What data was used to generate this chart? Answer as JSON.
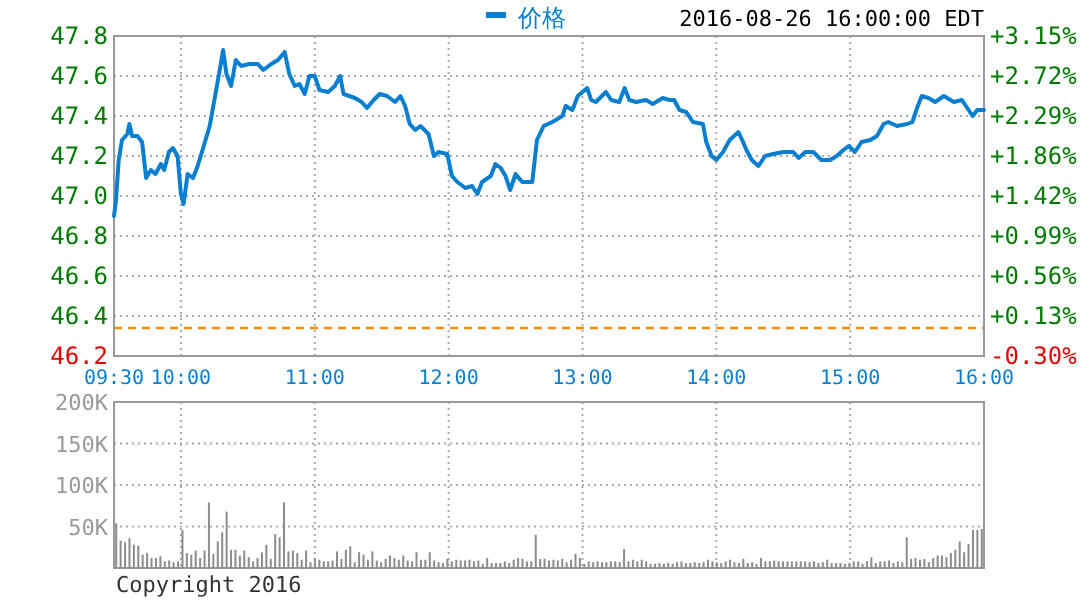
{
  "chart_data": [
    {
      "type": "line",
      "subtitle": "2016-08-26 16:00:00 EDT",
      "xlim": [
        9.5,
        16
      ],
      "xticks": [
        {
          "value": 9.5,
          "label": "09:30"
        },
        {
          "value": 10,
          "label": "10:00"
        },
        {
          "value": 11,
          "label": "11:00"
        },
        {
          "value": 12,
          "label": "12:00"
        },
        {
          "value": 13,
          "label": "13:00"
        },
        {
          "value": 14,
          "label": "14:00"
        },
        {
          "value": 15,
          "label": "15:00"
        },
        {
          "value": 16,
          "label": "16:00"
        }
      ],
      "ylim": [
        46.2,
        47.8
      ],
      "yticks": [
        46.2,
        46.4,
        46.6,
        46.8,
        {
          "value": 47,
          "label": "47.0"
        },
        47.2,
        47.4,
        47.6,
        47.8
      ],
      "y2lim": [
        -0.3,
        3.15
      ],
      "y2ticks": [
        {
          "value": -0.3,
          "label": "-0.30%"
        },
        {
          "value": 0.13,
          "label": "+0.13%"
        },
        {
          "value": 0.56,
          "label": "+0.56%"
        },
        {
          "value": 0.99,
          "label": "+0.99%"
        },
        {
          "value": 1.42,
          "label": "+1.42%"
        },
        {
          "value": 1.86,
          "label": "+1.86%"
        },
        {
          "value": 2.29,
          "label": "+2.29%"
        },
        {
          "value": 2.72,
          "label": "+2.72%"
        },
        {
          "value": 3.15,
          "label": "+3.15%"
        }
      ],
      "grid": true,
      "legend": "top",
      "ref_lines": [
        {
          "axis": "y",
          "value": 46.34,
          "color": "#ff8c00",
          "line_style": "dashed"
        }
      ],
      "series": [
        {
          "name": "价格",
          "color": "#0a7fcf",
          "x": [
            9.5,
            9.515,
            9.535,
            9.56,
            9.6,
            9.615,
            9.635,
            9.675,
            9.71,
            9.74,
            9.775,
            9.81,
            9.85,
            9.875,
            9.91,
            9.94,
            9.975,
            10.0,
            10.02,
            10.05,
            10.09,
            10.125,
            10.175,
            10.215,
            10.25,
            10.29,
            10.315,
            10.34,
            10.375,
            10.41,
            10.45,
            10.51,
            10.575,
            10.615,
            10.675,
            10.725,
            10.775,
            10.81,
            10.85,
            10.885,
            10.925,
            10.96,
            11.0,
            11.035,
            11.1,
            11.15,
            11.19,
            11.215,
            11.3,
            11.35,
            11.39,
            11.44,
            11.485,
            11.54,
            11.6,
            11.64,
            11.675,
            11.71,
            11.75,
            11.79,
            11.85,
            11.89,
            11.925,
            11.99,
            12.025,
            12.065,
            12.125,
            12.175,
            12.215,
            12.25,
            12.315,
            12.35,
            12.39,
            12.425,
            12.46,
            12.5,
            12.55,
            12.625,
            12.66,
            12.71,
            12.775,
            12.85,
            12.875,
            12.925,
            12.965,
            13.0,
            13.035,
            13.065,
            13.1,
            13.175,
            13.215,
            13.275,
            13.315,
            13.35,
            13.4,
            13.475,
            13.525,
            13.6,
            13.65,
            13.685,
            13.725,
            13.775,
            13.825,
            13.9,
            13.925,
            13.965,
            14.0,
            14.05,
            14.1,
            14.165,
            14.2,
            14.225,
            14.265,
            14.315,
            14.365,
            14.425,
            14.5,
            14.575,
            14.615,
            14.665,
            14.725,
            14.785,
            14.85,
            14.9,
            14.95,
            14.99,
            15.035,
            15.085,
            15.15,
            15.2,
            15.25,
            15.285,
            15.35,
            15.425,
            15.465,
            15.5,
            15.535,
            15.585,
            15.635,
            15.7,
            15.775,
            15.835,
            15.875,
            15.915,
            15.95,
            15.975,
            16.0
          ],
          "values": [
            46.9,
            46.98,
            47.18,
            47.28,
            47.31,
            47.36,
            47.3,
            47.3,
            47.27,
            47.09,
            47.13,
            47.11,
            47.16,
            47.13,
            47.22,
            47.24,
            47.2,
            47.01,
            46.96,
            47.11,
            47.09,
            47.15,
            47.26,
            47.35,
            47.48,
            47.63,
            47.73,
            47.61,
            47.55,
            47.68,
            47.65,
            47.66,
            47.66,
            47.63,
            47.66,
            47.68,
            47.72,
            47.61,
            47.55,
            47.56,
            47.51,
            47.6,
            47.6,
            47.53,
            47.52,
            47.55,
            47.6,
            47.51,
            47.49,
            47.47,
            47.44,
            47.48,
            47.51,
            47.5,
            47.47,
            47.5,
            47.45,
            47.36,
            47.33,
            47.35,
            47.31,
            47.2,
            47.22,
            47.21,
            47.1,
            47.07,
            47.04,
            47.05,
            47.01,
            47.07,
            47.1,
            47.16,
            47.14,
            47.1,
            47.03,
            47.11,
            47.07,
            47.07,
            47.28,
            47.35,
            47.37,
            47.4,
            47.45,
            47.43,
            47.5,
            47.52,
            47.54,
            47.48,
            47.47,
            47.52,
            47.48,
            47.47,
            47.54,
            47.48,
            47.47,
            47.48,
            47.46,
            47.49,
            47.48,
            47.48,
            47.43,
            47.42,
            47.37,
            47.36,
            47.27,
            47.2,
            47.18,
            47.22,
            47.28,
            47.32,
            47.27,
            47.23,
            47.18,
            47.15,
            47.2,
            47.21,
            47.22,
            47.22,
            47.19,
            47.22,
            47.22,
            47.18,
            47.18,
            47.2,
            47.23,
            47.25,
            47.22,
            47.27,
            47.28,
            47.3,
            47.36,
            47.37,
            47.35,
            47.36,
            47.37,
            47.44,
            47.5,
            47.49,
            47.47,
            47.5,
            47.47,
            47.48,
            47.44,
            47.4,
            47.43,
            47.43,
            47.43
          ]
        }
      ]
    },
    {
      "type": "bar",
      "color": "#8c8c8c",
      "grid": true,
      "tick_labels": "y",
      "ylim": [
        0,
        200000
      ],
      "yticks": [
        {
          "value": 0,
          "label": null
        },
        {
          "value": 50000,
          "label": "50K"
        },
        {
          "value": 100000,
          "label": "100K"
        },
        {
          "value": 150000,
          "label": "150K"
        },
        {
          "value": 200000,
          "label": "200K"
        }
      ],
      "annotations": [
        "Copyright 2016"
      ],
      "categories": [
        null,
        null,
        null,
        null,
        null,
        null,
        null,
        null,
        null,
        null,
        null,
        null,
        null,
        null,
        null,
        null,
        null,
        null,
        null,
        null,
        null,
        null,
        null,
        null,
        null,
        null,
        null,
        null,
        null,
        null,
        null,
        null,
        null,
        null,
        null,
        null,
        null,
        null,
        null,
        null,
        null,
        null,
        null,
        null,
        null,
        null,
        null,
        null,
        null,
        null,
        null,
        null,
        null,
        null,
        null,
        null,
        null,
        null,
        null,
        null,
        null,
        null,
        null,
        null,
        null,
        null,
        null,
        null,
        null,
        null,
        null,
        null,
        null,
        null,
        null,
        null,
        null,
        null,
        null,
        null,
        null,
        null,
        null,
        null,
        null,
        null,
        null,
        null,
        null,
        null,
        null,
        null,
        null,
        null,
        null,
        null,
        null,
        null,
        null,
        null,
        null,
        null,
        null,
        null,
        null,
        null,
        null,
        null,
        null,
        null,
        null,
        null,
        null,
        null,
        null,
        null,
        null,
        null,
        null,
        null,
        null,
        null,
        null,
        null,
        null,
        null,
        null,
        null,
        null,
        null,
        null,
        null,
        null,
        null,
        null,
        null,
        null,
        null,
        null,
        null,
        null,
        null,
        null,
        null,
        null,
        null,
        null,
        null,
        null,
        null,
        null,
        null,
        null,
        null,
        null,
        null,
        null,
        null,
        null,
        null,
        null,
        null,
        null,
        null,
        null,
        null,
        null,
        null,
        null,
        null,
        null,
        null,
        null,
        null,
        null,
        null,
        null,
        null,
        null,
        null,
        null,
        null,
        null,
        null,
        null,
        null,
        null,
        null,
        null,
        null,
        null,
        null,
        null,
        null,
        null,
        null,
        null
      ],
      "values": [
        54000,
        33000,
        31000,
        36000,
        28000,
        27000,
        16000,
        18000,
        12000,
        12000,
        14000,
        8000,
        9000,
        7000,
        8000,
        46000,
        18000,
        16000,
        21000,
        12000,
        21000,
        79000,
        17000,
        32000,
        43000,
        68000,
        22000,
        22000,
        15000,
        21000,
        13000,
        8000,
        12000,
        19000,
        28000,
        11000,
        41000,
        37000,
        79000,
        20000,
        21000,
        18000,
        10000,
        21000,
        7000,
        12000,
        10000,
        8000,
        8000,
        9000,
        20000,
        11000,
        22000,
        26000,
        7000,
        19000,
        16000,
        10000,
        20000,
        9000,
        7000,
        11000,
        15000,
        12000,
        10000,
        15000,
        9000,
        8000,
        19000,
        10000,
        10000,
        19000,
        9000,
        7000,
        6000,
        11000,
        8000,
        10000,
        9000,
        9000,
        10000,
        8000,
        9000,
        5000,
        12000,
        6000,
        6000,
        6000,
        8000,
        6000,
        10000,
        12000,
        11000,
        8000,
        8000,
        40000,
        11000,
        11000,
        9000,
        10000,
        9000,
        11000,
        7000,
        10000,
        17000,
        12000,
        5000,
        8000,
        7000,
        8000,
        7000,
        7000,
        8000,
        8000,
        7000,
        23000,
        8000,
        10000,
        8000,
        10000,
        8000,
        5000,
        5000,
        6000,
        5000,
        6000,
        5000,
        7000,
        8000,
        6000,
        6000,
        7000,
        6000,
        7000,
        10000,
        8000,
        7000,
        6000,
        8000,
        10000,
        7000,
        6000,
        11000,
        6000,
        7000,
        5000,
        12000,
        8000,
        8000,
        9000,
        8000,
        8000,
        8000,
        8000,
        8000,
        8000,
        8000,
        7000,
        8000,
        6000,
        7000,
        10000,
        6000,
        6000,
        6000,
        5000,
        6000,
        8000,
        8000,
        5000,
        8000,
        13000,
        6000,
        8000,
        8000,
        9000,
        6000,
        8000,
        7000,
        37000,
        11000,
        12000,
        10000,
        11000,
        7000,
        12000,
        15000,
        15000,
        13000,
        18000,
        22000,
        32000,
        19000,
        29000,
        46000,
        46000,
        47000
      ]
    }
  ]
}
